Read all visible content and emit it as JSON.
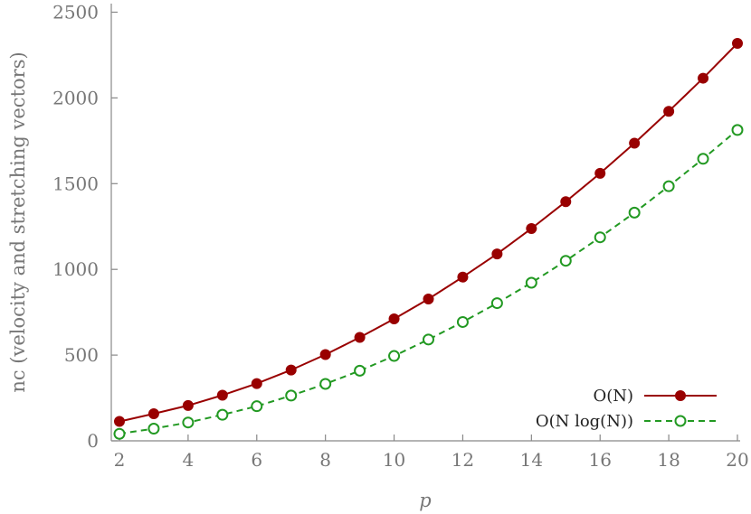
{
  "chart_data": {
    "type": "line",
    "xlabel": "p",
    "ylabel": "nc (velocity and stretching vectors)",
    "xlim": [
      2,
      20
    ],
    "ylim": [
      0,
      2550
    ],
    "xticks": [
      "2",
      "4",
      "6",
      "8",
      "10",
      "12",
      "14",
      "16",
      "18",
      "20"
    ],
    "yticks": [
      "0",
      "500",
      "1000",
      "1500",
      "2000",
      "2500"
    ],
    "grid": false,
    "legend_position": "bottom-right",
    "x": [
      2,
      3,
      4,
      5,
      6,
      7,
      8,
      9,
      10,
      11,
      12,
      13,
      14,
      15,
      16,
      17,
      18,
      19,
      20
    ],
    "series": [
      {
        "name": "O(N)",
        "color": "#990000",
        "marker": "filled-circle",
        "line_style": "solid",
        "values": [
          113,
          158,
          206,
          266,
          334,
          413,
          503,
          603,
          711,
          827,
          955,
          1090,
          1238,
          1395,
          1560,
          1736,
          1922,
          2115,
          2318
        ]
      },
      {
        "name": "O(N log(N))",
        "color": "#229922",
        "marker": "open-circle",
        "line_style": "dashed",
        "values": [
          41,
          71,
          107,
          152,
          202,
          264,
          332,
          409,
          495,
          591,
          693,
          803,
          922,
          1050,
          1187,
          1331,
          1485,
          1645,
          1813
        ]
      }
    ]
  }
}
